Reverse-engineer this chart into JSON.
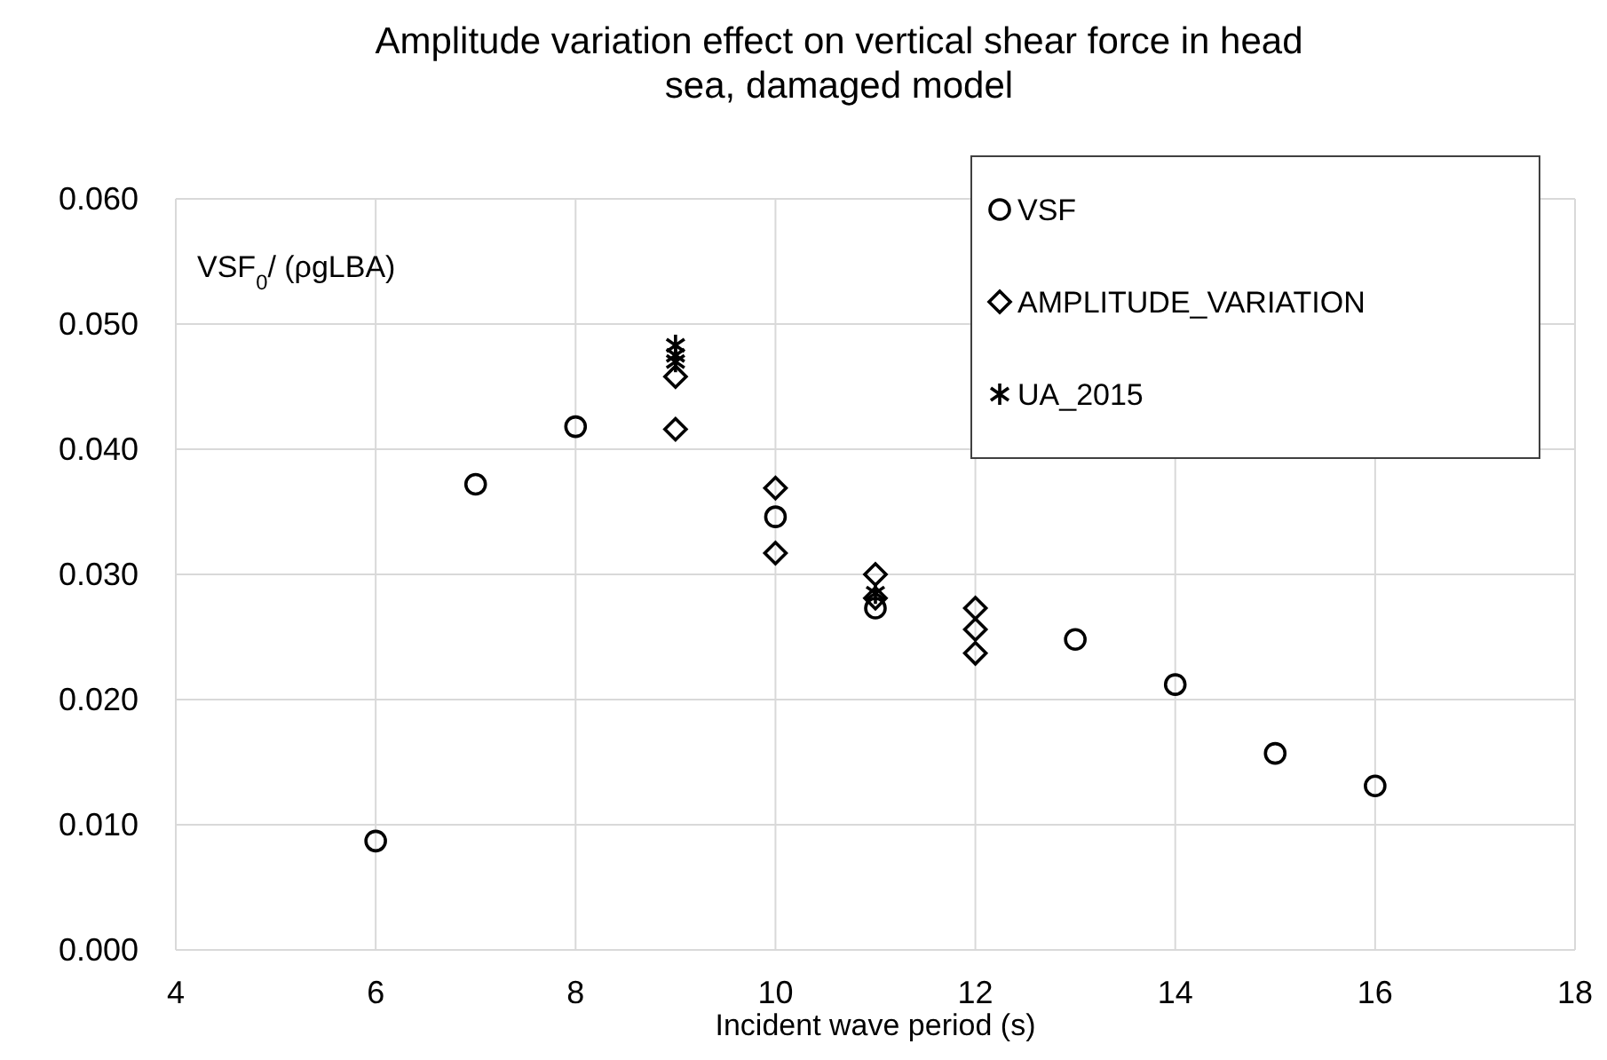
{
  "chart_data": {
    "type": "scatter",
    "title": "Amplitude variation effect on vertical shear force in head sea, damaged model",
    "xlabel": "Incident wave period (s)",
    "ylabel": "VSF$_{0}$/ (ρgLBA)",
    "xlim": [
      4,
      18
    ],
    "xticks": [
      4,
      6,
      8,
      10,
      12,
      14,
      16,
      18
    ],
    "ylim": [
      0,
      0.06
    ],
    "yticks": [
      {
        "value": 0,
        "label": "0.000"
      },
      {
        "value": 0.01,
        "label": "0.010"
      },
      {
        "value": 0.02,
        "label": "0.020"
      },
      {
        "value": 0.03,
        "label": "0.030"
      },
      {
        "value": 0.04,
        "label": "0.040"
      },
      {
        "value": 0.05,
        "label": "0.050"
      },
      {
        "value": 0.06,
        "label": "0.060"
      }
    ],
    "grid": true,
    "legend": "top right",
    "series": [
      {
        "name": "VSF",
        "color": "#000000",
        "marker": "circle",
        "x": [
          6,
          7,
          8,
          10,
          11,
          13,
          14,
          15,
          16
        ],
        "values": [
          0.0087,
          0.0372,
          0.0418,
          0.0346,
          0.0273,
          0.0248,
          0.0212,
          0.0157,
          0.0131
        ]
      },
      {
        "name": "AMPLITUDE_VARIATION",
        "color": "#000000",
        "marker": "diamond",
        "x": [
          9,
          9,
          10,
          10,
          11,
          11,
          12,
          12,
          12
        ],
        "values": [
          0.0458,
          0.0416,
          0.0369,
          0.0317,
          0.03,
          0.0281,
          0.0273,
          0.0256,
          0.0237
        ]
      },
      {
        "name": "UA_2015",
        "color": "#000000",
        "marker": "cross",
        "x": [
          9,
          9,
          9,
          11
        ],
        "values": [
          0.0483,
          0.0475,
          0.047,
          0.0285
        ]
      }
    ]
  }
}
